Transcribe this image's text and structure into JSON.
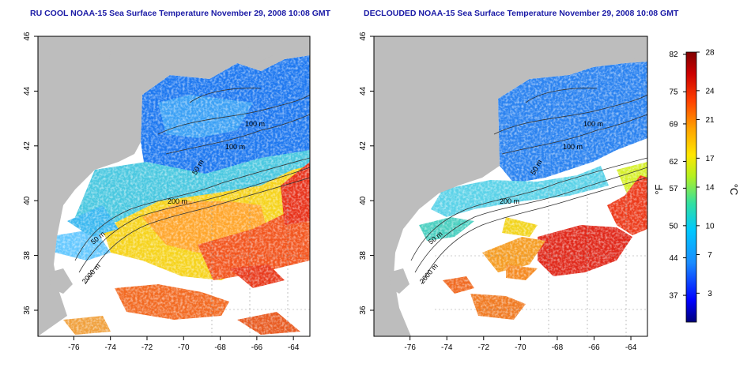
{
  "panels": [
    {
      "title": "RU COOL NOAA-15 Sea Surface Temperature November 29, 2008 10:08 GMT",
      "contour_labels": [
        "100 m",
        "100 m",
        "50 m",
        "200 m",
        "50 m",
        "2000 m"
      ]
    },
    {
      "title": "DECLOUDED NOAA-15 Sea Surface Temperature November 29, 2008 10:08 GMT",
      "contour_labels": [
        "100 m",
        "100 m",
        "50 m",
        "200 m",
        "50 m",
        "2000 m"
      ]
    }
  ],
  "axes": {
    "x_ticks": [
      "-76",
      "-74",
      "-72",
      "-70",
      "-68",
      "-66",
      "-64"
    ],
    "y_ticks": [
      "36",
      "38",
      "40",
      "42",
      "44",
      "46"
    ]
  },
  "colorbar": {
    "fahrenheit_ticks": [
      "82",
      "75",
      "69",
      "62",
      "57",
      "50",
      "44",
      "37"
    ],
    "celsius_ticks": [
      "28",
      "24",
      "21",
      "17",
      "14",
      "10",
      "7",
      "3"
    ],
    "fahrenheit_unit": "°F",
    "celsius_unit": "°C",
    "range_celsius": [
      0,
      28
    ]
  },
  "colors": {
    "land": "#bdbdbd",
    "title": "#1a1aa6",
    "gradient": [
      "#00007a",
      "#0000ff",
      "#1a8cff",
      "#00c8ff",
      "#33e0a0",
      "#b4f020",
      "#ffe600",
      "#ffa000",
      "#ff4000",
      "#cc0000",
      "#800000"
    ]
  }
}
